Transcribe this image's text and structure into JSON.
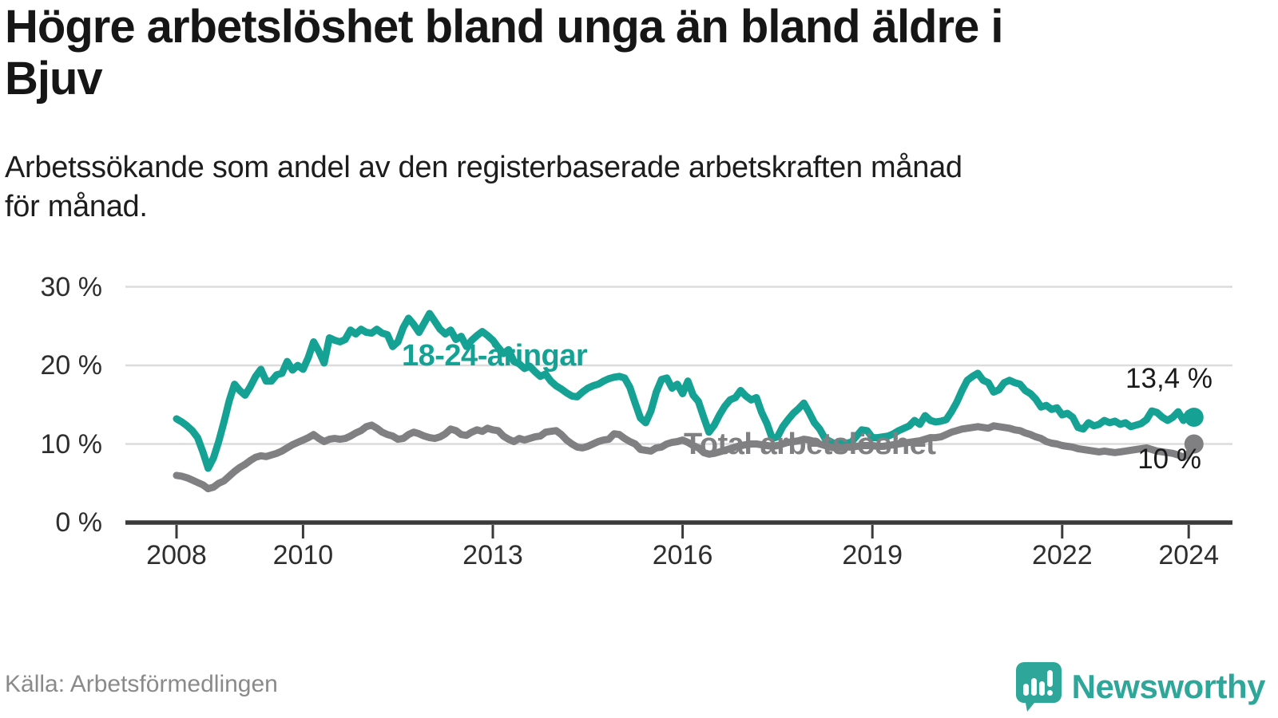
{
  "header": {
    "title": "Högre arbetslöshet bland unga än bland äldre i\nBjuv",
    "subtitle": "Arbetssökande som andel av den registerbaserade arbetskraften månad\nför månad."
  },
  "footer": {
    "source": "Källa: Arbetsförmedlingen",
    "brand_name": "Newsworthy",
    "brand_logo_icon": "speech-bubble-bar-chart-exclamation"
  },
  "colors": {
    "youth_line": "#15a294",
    "total_line": "#808083",
    "axis": "#3a3a3a",
    "grid": "#dcdcdc",
    "end_label_text": "#1a1a1a",
    "source_text": "#8a8a8a",
    "brand": "#2fa69a"
  },
  "chart_data": {
    "type": "line",
    "frequency": "monthly",
    "x_start": "2008-01",
    "x_end": "2024-02",
    "grid": "horizontal",
    "ylim": [
      0,
      30
    ],
    "y_tick_labels": [
      "30 %",
      "20 %",
      "10 %",
      "0 %"
    ],
    "y_tick_values": [
      30,
      20,
      10,
      0
    ],
    "x_tick_labels": [
      "2008",
      "2010",
      "2013",
      "2016",
      "2019",
      "2022",
      "2024"
    ],
    "x_tick_years": [
      2008,
      2010,
      2013,
      2016,
      2019,
      2022,
      2024
    ],
    "series": [
      {
        "name": "18-24-åringar",
        "end_label": "13,4 %",
        "end_value": 13.4,
        "values": [
          13.2,
          12.8,
          12.3,
          11.7,
          10.8,
          9.0,
          6.9,
          8.2,
          10.3,
          12.8,
          15.5,
          17.6,
          16.8,
          16.2,
          17.3,
          18.6,
          19.5,
          18.0,
          18.0,
          18.8,
          19.0,
          20.5,
          19.4,
          20.0,
          19.5,
          21.0,
          23.0,
          21.8,
          20.3,
          23.5,
          23.2,
          23.0,
          23.3,
          24.5,
          24.0,
          24.6,
          24.2,
          24.1,
          24.6,
          24.1,
          23.9,
          22.4,
          23.0,
          24.8,
          26.0,
          25.2,
          24.2,
          25.4,
          26.6,
          25.6,
          24.6,
          24.0,
          24.5,
          23.3,
          23.7,
          22.4,
          23.2,
          23.8,
          24.3,
          23.8,
          23.2,
          22.3,
          21.5,
          22.0,
          20.5,
          20.2,
          19.6,
          19.9,
          19.2,
          18.6,
          18.9,
          18.0,
          17.4,
          17.0,
          16.5,
          16.1,
          16.0,
          16.6,
          17.1,
          17.4,
          17.6,
          18.0,
          18.3,
          18.5,
          18.6,
          18.4,
          17.2,
          15.2,
          13.3,
          12.7,
          14.2,
          16.6,
          18.2,
          18.4,
          17.1,
          17.6,
          16.4,
          18.0,
          16.2,
          15.4,
          13.4,
          11.5,
          12.4,
          13.7,
          14.8,
          15.6,
          15.9,
          16.8,
          16.1,
          15.6,
          15.9,
          14.0,
          12.6,
          10.7,
          10.9,
          12.2,
          13.1,
          13.9,
          14.5,
          15.2,
          14.0,
          12.7,
          11.9,
          10.7,
          10.3,
          10.0,
          10.0,
          10.1,
          10.2,
          11.0,
          11.8,
          11.7,
          10.8,
          10.8,
          10.9,
          11.0,
          11.3,
          11.7,
          12.0,
          12.3,
          13.0,
          12.5,
          13.6,
          13.0,
          12.8,
          12.9,
          13.1,
          14.1,
          15.3,
          16.8,
          18.1,
          18.6,
          19.0,
          18.1,
          17.8,
          16.6,
          16.9,
          17.8,
          18.1,
          17.8,
          17.6,
          16.8,
          16.4,
          15.7,
          14.7,
          14.9,
          14.4,
          14.6,
          13.7,
          13.9,
          13.4,
          12.1,
          11.9,
          12.7,
          12.3,
          12.5,
          13.0,
          12.7,
          12.9,
          12.5,
          12.7,
          12.2,
          12.4,
          12.6,
          13.1,
          14.2,
          14.0,
          13.4,
          13.0,
          13.4,
          14.1,
          13.0,
          13.9,
          13.4
        ]
      },
      {
        "name": "Total arbetslöshet",
        "end_label": "10 %",
        "end_value": 10.0,
        "values": [
          6.0,
          5.9,
          5.7,
          5.4,
          5.1,
          4.8,
          4.3,
          4.5,
          5.0,
          5.3,
          5.9,
          6.5,
          7.0,
          7.4,
          7.9,
          8.3,
          8.5,
          8.4,
          8.6,
          8.8,
          9.1,
          9.5,
          9.9,
          10.2,
          10.5,
          10.8,
          11.2,
          10.7,
          10.3,
          10.6,
          10.7,
          10.6,
          10.7,
          11.0,
          11.4,
          11.7,
          12.2,
          12.4,
          12.0,
          11.5,
          11.2,
          11.0,
          10.6,
          10.7,
          11.2,
          11.5,
          11.3,
          11.0,
          10.8,
          10.7,
          10.9,
          11.3,
          11.9,
          11.7,
          11.2,
          11.1,
          11.5,
          11.8,
          11.6,
          12.0,
          11.8,
          11.7,
          11.0,
          10.6,
          10.3,
          10.7,
          10.5,
          10.7,
          10.9,
          11.0,
          11.5,
          11.6,
          11.7,
          11.2,
          10.5,
          10.0,
          9.6,
          9.5,
          9.7,
          10.0,
          10.3,
          10.5,
          10.6,
          11.3,
          11.2,
          10.7,
          10.3,
          10.0,
          9.3,
          9.2,
          9.1,
          9.5,
          9.6,
          10.0,
          10.2,
          10.3,
          10.5,
          10.2,
          9.8,
          9.5,
          8.9,
          8.7,
          8.8,
          9.0,
          9.2,
          9.4,
          9.6,
          9.8,
          9.9,
          10.0,
          10.0,
          9.9,
          9.8,
          9.7,
          9.8,
          10.0,
          10.2,
          10.3,
          10.4,
          10.6,
          10.5,
          10.3,
          10.0,
          9.8,
          9.6,
          9.5,
          9.5,
          9.6,
          9.6,
          9.7,
          9.8,
          9.8,
          9.8,
          9.7,
          9.7,
          9.8,
          9.9,
          10.0,
          10.1,
          10.2,
          10.3,
          10.4,
          10.6,
          10.8,
          10.8,
          10.9,
          11.2,
          11.5,
          11.7,
          11.9,
          12.0,
          12.1,
          12.2,
          12.1,
          12.0,
          12.3,
          12.2,
          12.1,
          12.0,
          11.8,
          11.7,
          11.4,
          11.2,
          10.9,
          10.7,
          10.3,
          10.1,
          10.0,
          9.8,
          9.7,
          9.6,
          9.4,
          9.3,
          9.2,
          9.1,
          9.0,
          9.1,
          9.0,
          8.9,
          9.0,
          9.1,
          9.2,
          9.3,
          9.4,
          9.5,
          9.3,
          9.1,
          9.0,
          8.9,
          8.8,
          8.6,
          8.3,
          8.8,
          10.0
        ]
      }
    ]
  }
}
